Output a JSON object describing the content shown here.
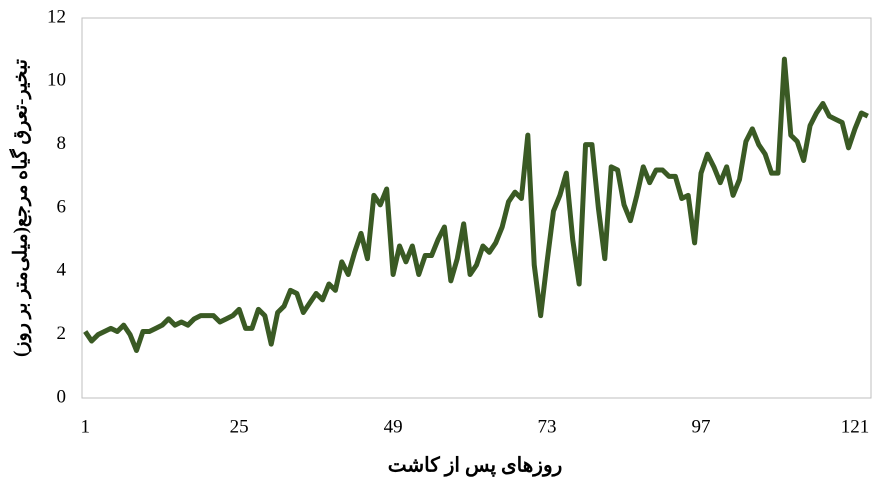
{
  "chart_data": {
    "type": "line",
    "x_label": "روزهای پس از کاشت",
    "y_label": "تبخیر-تعرق گیاه مرجع(میلی‌متر بر روز)",
    "x": [
      1,
      2,
      3,
      4,
      5,
      6,
      7,
      8,
      9,
      10,
      11,
      12,
      13,
      14,
      15,
      16,
      17,
      18,
      19,
      20,
      21,
      22,
      23,
      24,
      25,
      26,
      27,
      28,
      29,
      30,
      31,
      32,
      33,
      34,
      35,
      36,
      37,
      38,
      39,
      40,
      41,
      42,
      43,
      44,
      45,
      46,
      47,
      48,
      49,
      50,
      51,
      52,
      53,
      54,
      55,
      56,
      57,
      58,
      59,
      60,
      61,
      62,
      63,
      64,
      65,
      66,
      67,
      68,
      69,
      70,
      71,
      72,
      73,
      74,
      75,
      76,
      77,
      78,
      79,
      80,
      81,
      82,
      83,
      84,
      85,
      86,
      87,
      88,
      89,
      90,
      91,
      92,
      93,
      94,
      95,
      96,
      97,
      98,
      99,
      100,
      101,
      102,
      103,
      104,
      105,
      106,
      107,
      108,
      109,
      110,
      111,
      112,
      113,
      114,
      115,
      116,
      117,
      118,
      119,
      120,
      121,
      122,
      123
    ],
    "series": [
      {
        "color": "#3a5a24",
        "values": [
          2.1,
          1.8,
          2.0,
          2.1,
          2.2,
          2.1,
          2.3,
          2.0,
          1.5,
          2.1,
          2.1,
          2.2,
          2.3,
          2.5,
          2.3,
          2.4,
          2.3,
          2.5,
          2.6,
          2.6,
          2.6,
          2.4,
          2.5,
          2.6,
          2.8,
          2.2,
          2.2,
          2.8,
          2.6,
          1.7,
          2.7,
          2.9,
          3.4,
          3.3,
          2.7,
          3.0,
          3.3,
          3.1,
          3.6,
          3.4,
          4.3,
          3.9,
          4.6,
          5.2,
          4.4,
          6.4,
          6.1,
          6.6,
          3.9,
          4.8,
          4.3,
          4.8,
          3.9,
          4.5,
          4.5,
          5.0,
          5.4,
          3.7,
          4.4,
          5.5,
          3.9,
          4.2,
          4.8,
          4.6,
          4.9,
          5.4,
          6.2,
          6.5,
          6.3,
          8.3,
          4.2,
          2.6,
          4.3,
          5.9,
          6.4,
          7.1,
          5.0,
          3.6,
          8.0,
          8.0,
          6.0,
          4.4,
          7.3,
          7.2,
          6.1,
          5.6,
          6.4,
          7.3,
          6.8,
          7.2,
          7.2,
          7.0,
          7.0,
          6.3,
          6.4,
          4.9,
          7.1,
          7.7,
          7.3,
          6.8,
          7.3,
          6.4,
          6.9,
          8.1,
          8.5,
          8.0,
          7.7,
          7.1,
          7.1,
          10.7,
          8.3,
          8.1,
          7.5,
          8.6,
          9.0,
          9.3,
          8.9,
          8.8,
          8.7,
          7.9,
          8.5,
          9.0,
          8.9
        ]
      }
    ],
    "xlim": [
      0.5,
      123.5
    ],
    "xticks": [
      1,
      25,
      49,
      73,
      97,
      121
    ],
    "ylim": [
      0,
      12
    ],
    "yticks": [
      0,
      2,
      4,
      6,
      8,
      10,
      12
    ]
  }
}
